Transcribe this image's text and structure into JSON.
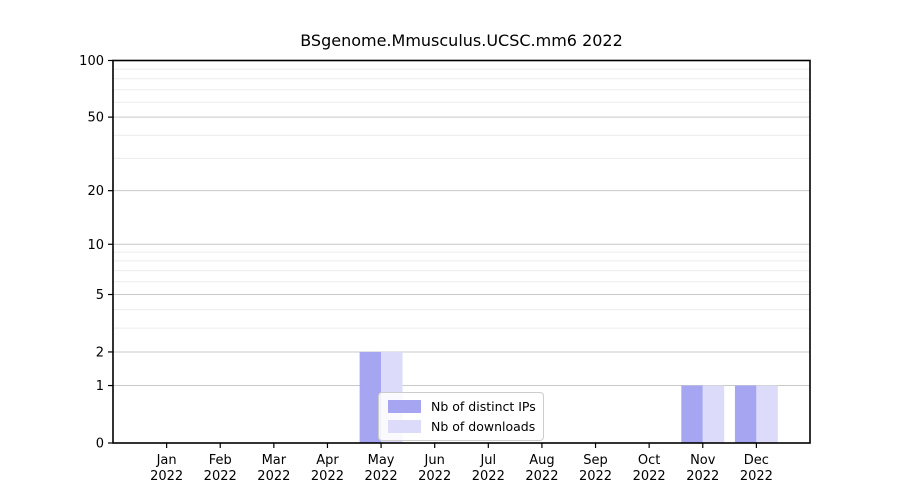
{
  "chart_data": {
    "type": "bar",
    "title": "BSgenome.Mmusculus.UCSC.mm6 2022",
    "categories": [
      "Jan",
      "Feb",
      "Mar",
      "Apr",
      "May",
      "Jun",
      "Jul",
      "Aug",
      "Sep",
      "Oct",
      "Nov",
      "Dec"
    ],
    "category_year": "2022",
    "series": [
      {
        "name": "Nb of distinct IPs",
        "color": "#a5a5f1",
        "values": [
          0,
          0,
          0,
          0,
          2,
          0,
          0,
          0,
          0,
          0,
          1,
          1
        ]
      },
      {
        "name": "Nb of downloads",
        "color": "#dcdcfa",
        "values": [
          0,
          0,
          0,
          0,
          2,
          0,
          0,
          0,
          0,
          0,
          1,
          1
        ]
      }
    ],
    "xlabel": "",
    "ylabel": "",
    "yscale": "log1p",
    "ylim": [
      0,
      100
    ],
    "yticks": [
      0,
      1,
      2,
      5,
      10,
      20,
      50,
      100
    ],
    "yticks_minor": [
      3,
      4,
      6,
      7,
      8,
      9,
      30,
      40,
      60,
      70,
      80,
      90
    ],
    "grid": true,
    "legend_position": "inside-bottom-center-left",
    "colors": {
      "grid_major": "#c9c9c9",
      "grid_minor": "#ececec",
      "axis": "#000000",
      "background": "#ffffff"
    }
  }
}
